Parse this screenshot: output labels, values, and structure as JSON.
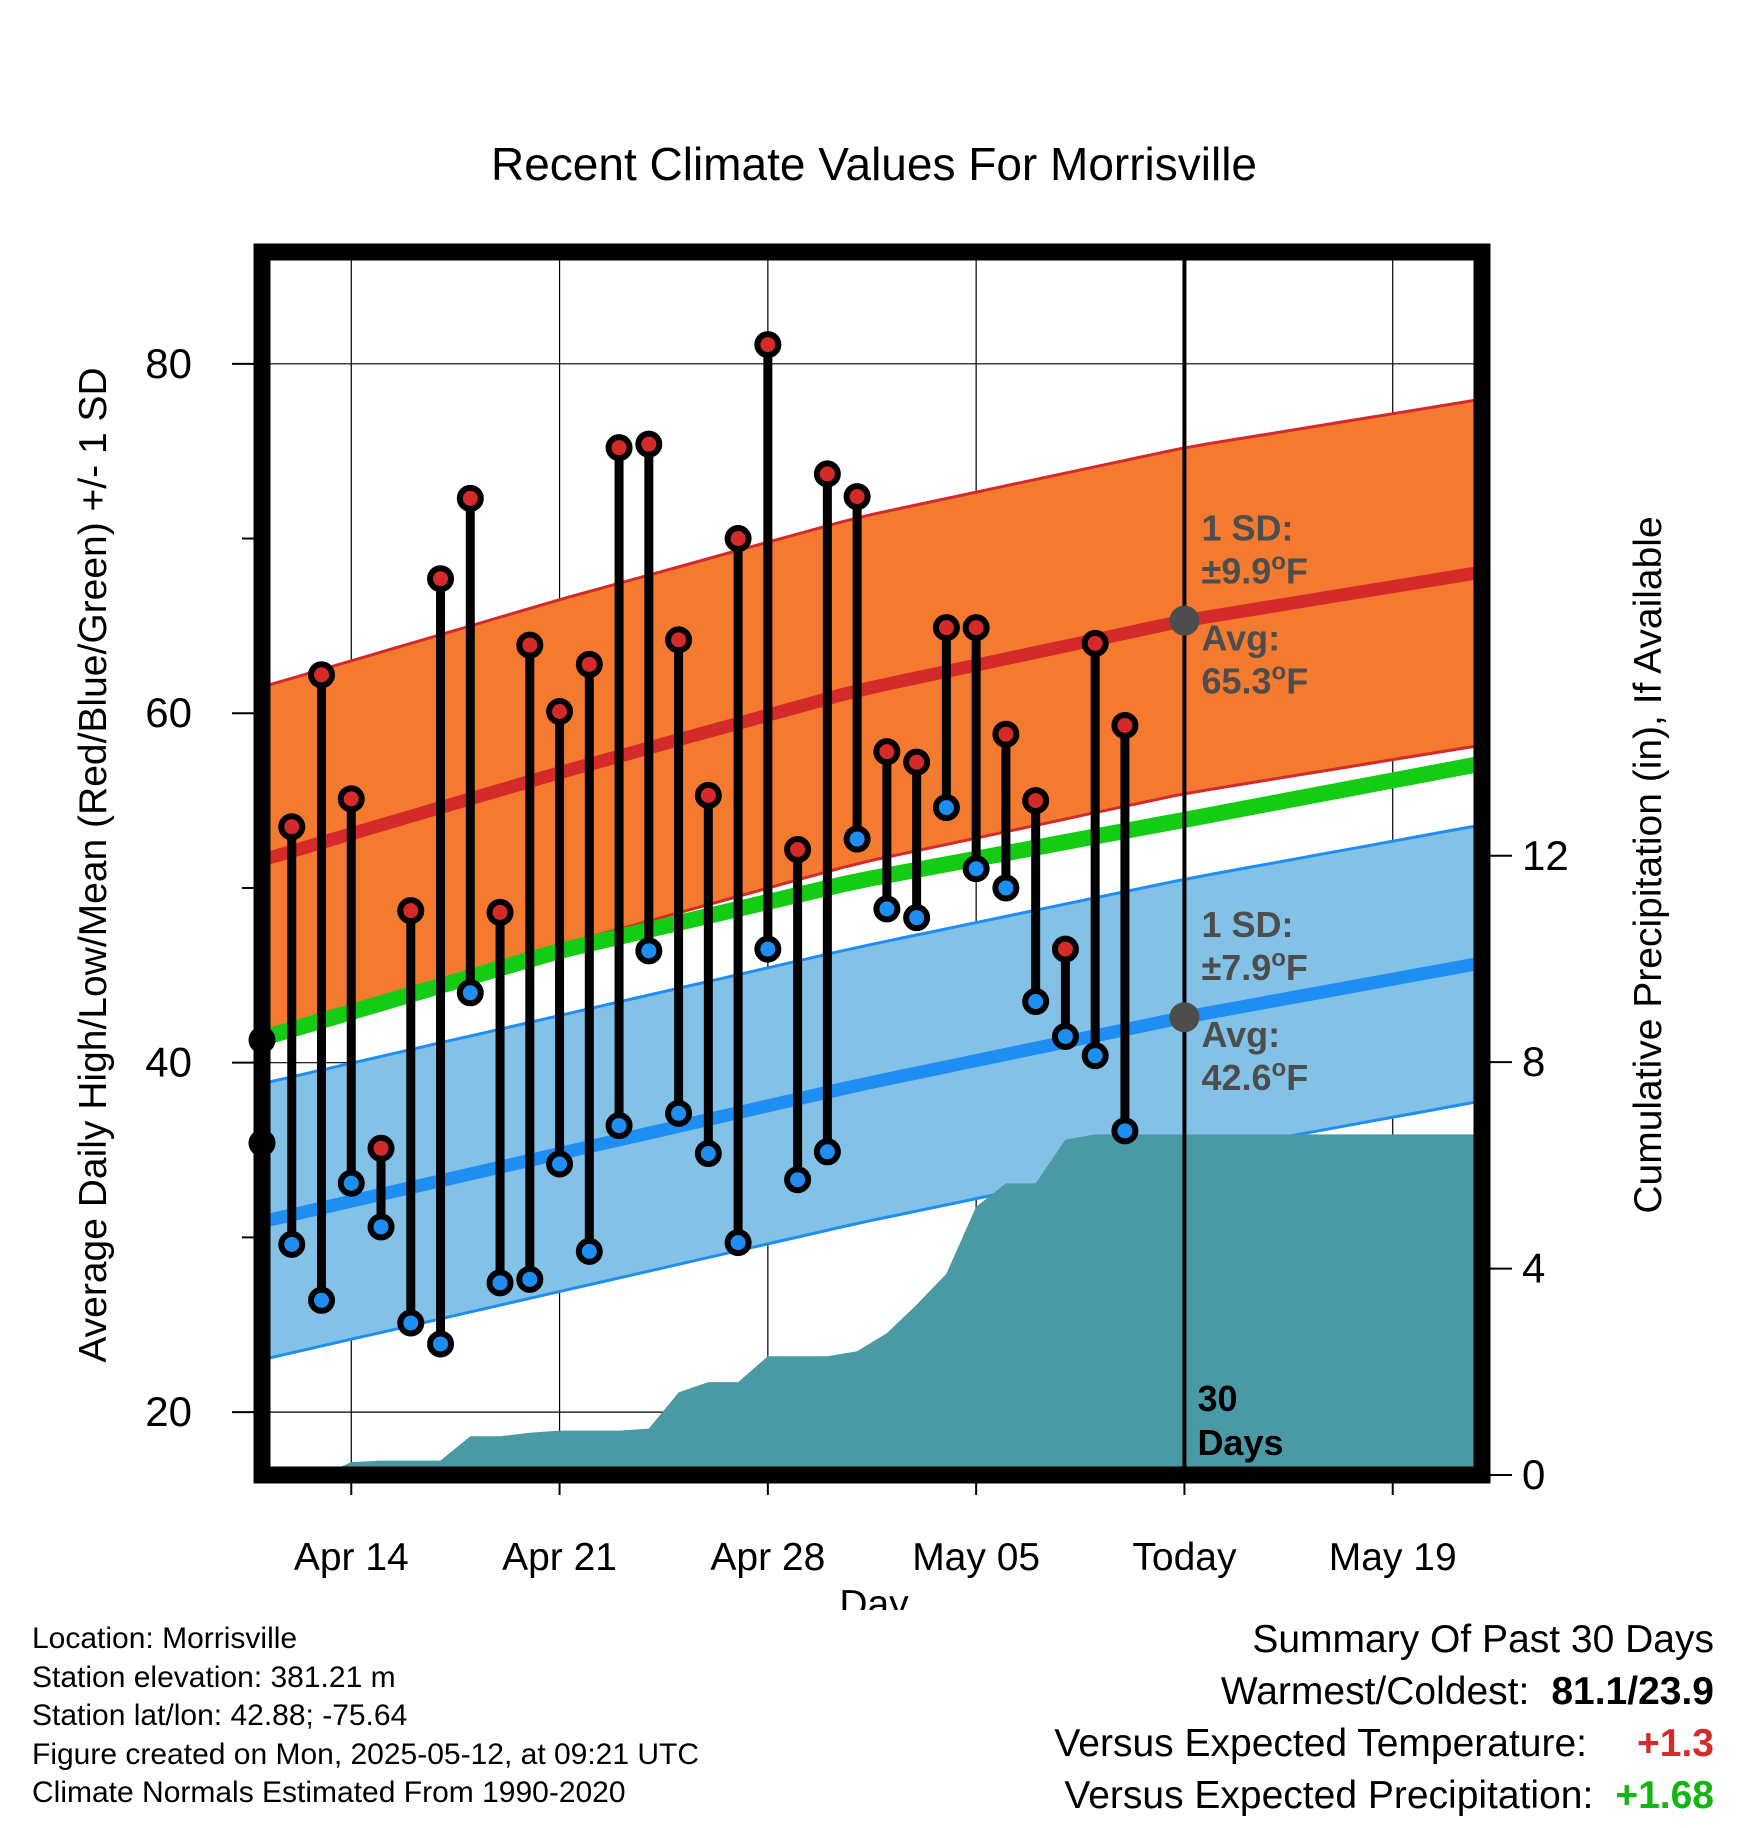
{
  "chart_data": {
    "type": "line",
    "title": "Recent Climate Values For Morrisville",
    "xlabel": "Day",
    "ylabel": "Average Daily High/Low/Mean (Red/Blue/Green) +/- 1 SD",
    "y2label": "Cumulative Precipitation (in), If Available",
    "x_range": [
      "2025-04-11",
      "2025-05-22"
    ],
    "ylim": [
      16.4,
      86.4
    ],
    "y2lim": [
      0,
      23.7
    ],
    "x_ticks": [
      {
        "date": "2025-04-14",
        "label": "Apr 14"
      },
      {
        "date": "2025-04-21",
        "label": "Apr 21"
      },
      {
        "date": "2025-04-28",
        "label": "Apr 28"
      },
      {
        "date": "2025-05-05",
        "label": "May 05"
      },
      {
        "date": "2025-05-12",
        "label": "Today"
      },
      {
        "date": "2025-05-19",
        "label": "May 19"
      }
    ],
    "y_ticks": [
      "20",
      "40",
      "60",
      "80"
    ],
    "y2_ticks": [
      "0",
      "4",
      "8",
      "12"
    ],
    "grid": true,
    "today": "2025-05-12",
    "colors": {
      "high_band": "#f47a30",
      "high_line": "#d42a2a",
      "low_band": "#84c1e6",
      "low_line": "#1e8ef2",
      "mean_line": "#13cc13",
      "precip": "#4a9aa6",
      "high_marker": "#d42a2a",
      "low_marker": "#1e8ef2",
      "today_marker": "#4d4d4d",
      "annotation": "#4d4d4d",
      "positive_temp": "#d42a2a",
      "positive_precip": "#13b513"
    },
    "normals": {
      "dates": [
        "2025-04-11",
        "2025-04-21",
        "2025-05-01",
        "2025-05-12",
        "2025-05-21"
      ],
      "high_avg": [
        51.6,
        56.6,
        61.3,
        65.3,
        67.8
      ],
      "high_sd": 9.9,
      "low_avg": [
        30.9,
        34.8,
        38.7,
        42.6,
        45.4
      ],
      "low_sd": 7.9,
      "mean_avg": [
        41.4,
        46.4,
        50.4,
        53.9,
        56.8
      ]
    },
    "daily": [
      {
        "date": "2025-04-11",
        "high": 41.3,
        "low": 35.4
      },
      {
        "date": "2025-04-12",
        "high": 53.5,
        "low": 29.6
      },
      {
        "date": "2025-04-13",
        "high": 62.2,
        "low": 26.4
      },
      {
        "date": "2025-04-14",
        "high": 55.1,
        "low": 33.1
      },
      {
        "date": "2025-04-15",
        "high": 35.1,
        "low": 30.6
      },
      {
        "date": "2025-04-16",
        "high": 48.7,
        "low": 25.1
      },
      {
        "date": "2025-04-17",
        "high": 67.7,
        "low": 23.9
      },
      {
        "date": "2025-04-18",
        "high": 72.3,
        "low": 44.0
      },
      {
        "date": "2025-04-19",
        "high": 48.6,
        "low": 27.4
      },
      {
        "date": "2025-04-20",
        "high": 63.9,
        "low": 27.6
      },
      {
        "date": "2025-04-21",
        "high": 60.1,
        "low": 34.2
      },
      {
        "date": "2025-04-22",
        "high": 62.8,
        "low": 29.2
      },
      {
        "date": "2025-04-23",
        "high": 75.2,
        "low": 36.4
      },
      {
        "date": "2025-04-24",
        "high": 75.4,
        "low": 46.4
      },
      {
        "date": "2025-04-25",
        "high": 64.2,
        "low": 37.1
      },
      {
        "date": "2025-04-26",
        "high": 55.3,
        "low": 34.8
      },
      {
        "date": "2025-04-27",
        "high": 70.0,
        "low": 29.7
      },
      {
        "date": "2025-04-28",
        "high": 81.1,
        "low": 46.5
      },
      {
        "date": "2025-04-29",
        "high": 52.2,
        "low": 33.3
      },
      {
        "date": "2025-04-30",
        "high": 73.7,
        "low": 34.9
      },
      {
        "date": "2025-05-01",
        "high": 72.4,
        "low": 52.8
      },
      {
        "date": "2025-05-02",
        "high": 57.8,
        "low": 48.8
      },
      {
        "date": "2025-05-03",
        "high": 57.2,
        "low": 48.3
      },
      {
        "date": "2025-05-04",
        "high": 64.9,
        "low": 54.6
      },
      {
        "date": "2025-05-05",
        "high": 64.9,
        "low": 51.1
      },
      {
        "date": "2025-05-06",
        "high": 58.8,
        "low": 50.0
      },
      {
        "date": "2025-05-07",
        "high": 55.0,
        "low": 43.5
      },
      {
        "date": "2025-05-08",
        "high": 46.5,
        "low": 41.5
      },
      {
        "date": "2025-05-09",
        "high": 64.0,
        "low": 40.4
      },
      {
        "date": "2025-05-10",
        "high": 59.3,
        "low": 36.1
      }
    ],
    "precip_cumulative": [
      {
        "date": "2025-04-13",
        "value": 0.0
      },
      {
        "date": "2025-04-14",
        "value": 0.25
      },
      {
        "date": "2025-04-15",
        "value": 0.28
      },
      {
        "date": "2025-04-16",
        "value": 0.28
      },
      {
        "date": "2025-04-17",
        "value": 0.28
      },
      {
        "date": "2025-04-18",
        "value": 0.75
      },
      {
        "date": "2025-04-19",
        "value": 0.75
      },
      {
        "date": "2025-04-20",
        "value": 0.82
      },
      {
        "date": "2025-04-21",
        "value": 0.86
      },
      {
        "date": "2025-04-22",
        "value": 0.86
      },
      {
        "date": "2025-04-23",
        "value": 0.86
      },
      {
        "date": "2025-04-24",
        "value": 0.9
      },
      {
        "date": "2025-04-25",
        "value": 1.6
      },
      {
        "date": "2025-04-26",
        "value": 1.8
      },
      {
        "date": "2025-04-27",
        "value": 1.8
      },
      {
        "date": "2025-04-28",
        "value": 2.3
      },
      {
        "date": "2025-04-29",
        "value": 2.3
      },
      {
        "date": "2025-04-30",
        "value": 2.3
      },
      {
        "date": "2025-05-01",
        "value": 2.4
      },
      {
        "date": "2025-05-02",
        "value": 2.75
      },
      {
        "date": "2025-05-03",
        "value": 3.3
      },
      {
        "date": "2025-05-04",
        "value": 3.9
      },
      {
        "date": "2025-05-05",
        "value": 5.2
      },
      {
        "date": "2025-05-06",
        "value": 5.65
      },
      {
        "date": "2025-05-07",
        "value": 5.65
      },
      {
        "date": "2025-05-08",
        "value": 6.5
      },
      {
        "date": "2025-05-09",
        "value": 6.6
      },
      {
        "date": "2025-05-22",
        "value": 6.6
      }
    ],
    "annotations": {
      "high_sd_label": "1 SD:",
      "high_sd_value": "±9.9",
      "high_avg_label": "Avg:",
      "high_avg_value": "65.3",
      "low_sd_label": "1 SD:",
      "low_sd_value": "±7.9",
      "low_avg_label": "Avg:",
      "low_avg_value": "42.6",
      "unit_o": "o",
      "unit_f": "F",
      "days_count": "30",
      "days_word": "Days"
    }
  },
  "info": {
    "location": "Location: Morrisville",
    "elevation": "Station elevation: 381.21 m",
    "latlon": "Station lat/lon: 42.88; -75.64",
    "created": "Figure created on Mon, 2025-05-12, at 09:21 UTC",
    "normals": "Climate Normals Estimated From 1990-2020"
  },
  "summary": {
    "title": "Summary Of Past 30 Days",
    "warmest_label": "Warmest/Coldest:",
    "warmest_value": "81.1/23.9",
    "temp_label": "Versus Expected Temperature:",
    "temp_value": "+1.3",
    "precip_label": "Versus Expected Precipitation:",
    "precip_value": "+1.68"
  }
}
